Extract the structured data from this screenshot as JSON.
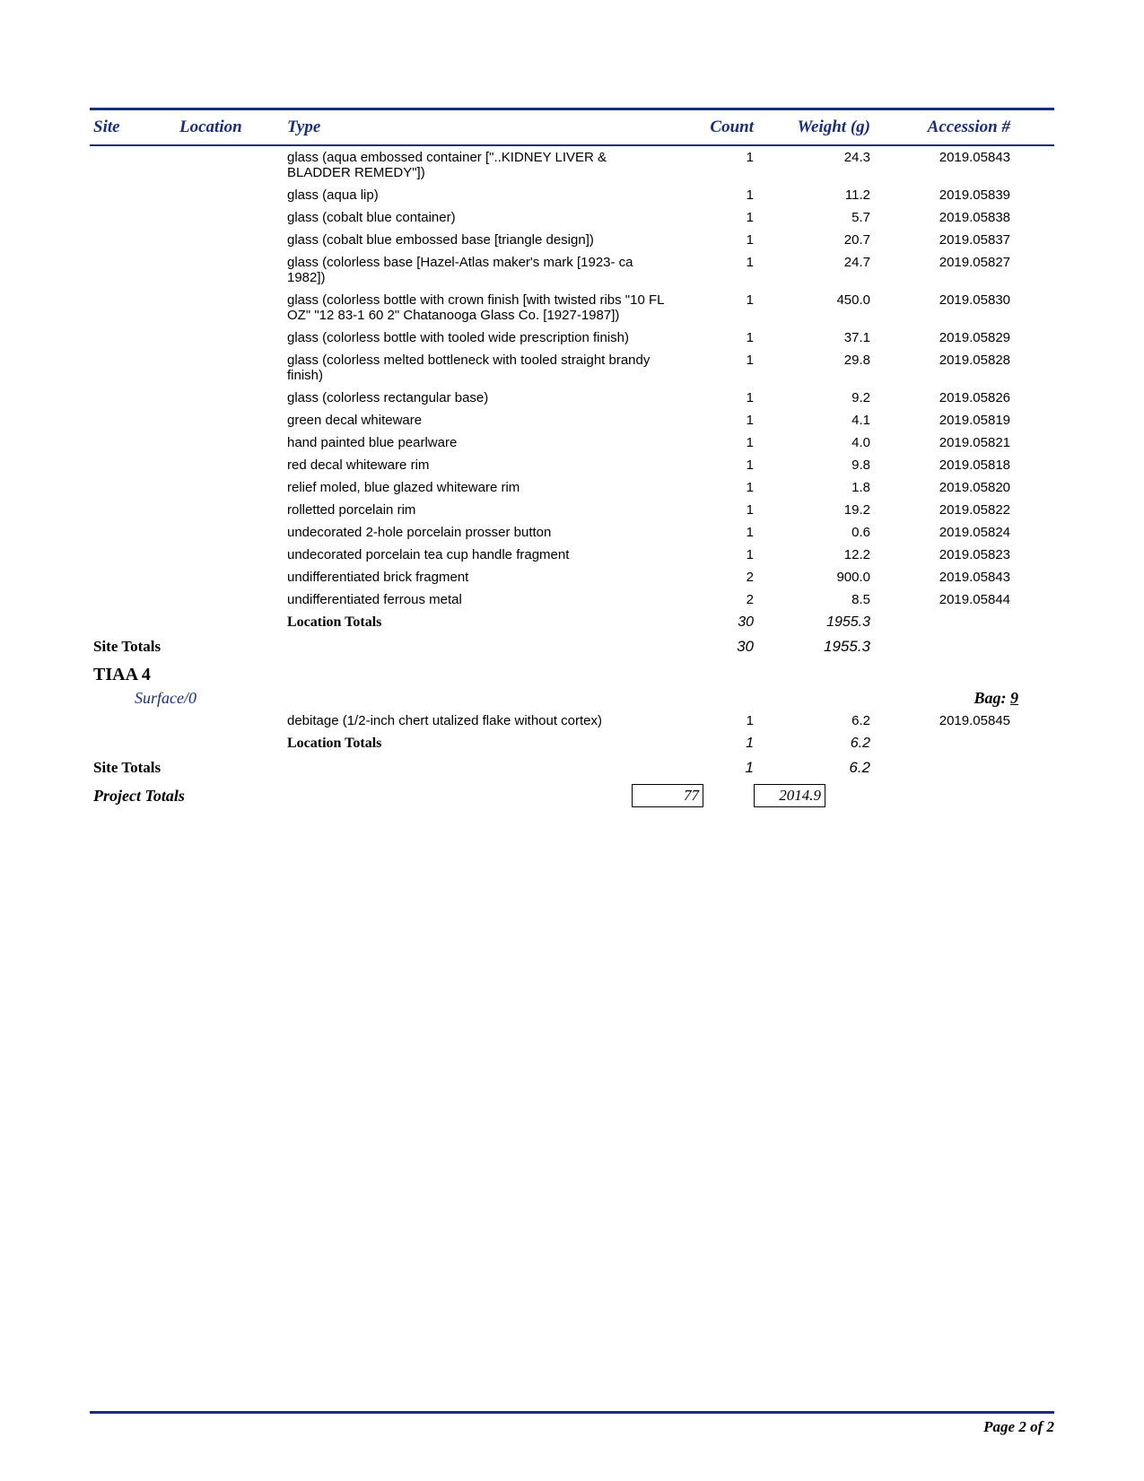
{
  "headers": {
    "site": "Site",
    "location": "Location",
    "type": "Type",
    "count": "Count",
    "weight": "Weight (g)",
    "accession": "Accession #"
  },
  "rows1": [
    {
      "type": "glass (aqua embossed container [\"..KIDNEY LIVER & BLADDER REMEDY\"])",
      "count": "1",
      "weight": "24.3",
      "accession": "2019.05843"
    },
    {
      "type": "glass (aqua lip)",
      "count": "1",
      "weight": "11.2",
      "accession": "2019.05839"
    },
    {
      "type": "glass (cobalt blue container)",
      "count": "1",
      "weight": "5.7",
      "accession": "2019.05838"
    },
    {
      "type": "glass (cobalt blue embossed base [triangle design])",
      "count": "1",
      "weight": "20.7",
      "accession": "2019.05837"
    },
    {
      "type": "glass (colorless base [Hazel-Atlas maker's mark [1923- ca 1982])",
      "count": "1",
      "weight": "24.7",
      "accession": "2019.05827"
    },
    {
      "type": "glass (colorless bottle  with crown finish [with twisted ribs \"10 FL OZ\" \"12 83-1 60 2\" Chatanooga Glass Co. [1927-1987])",
      "count": "1",
      "weight": "450.0",
      "accession": "2019.05830"
    },
    {
      "type": "glass (colorless bottle  with tooled wide prescription finish)",
      "count": "1",
      "weight": "37.1",
      "accession": "2019.05829"
    },
    {
      "type": "glass (colorless melted bottleneck with tooled straight brandy finish)",
      "count": "1",
      "weight": "29.8",
      "accession": "2019.05828"
    },
    {
      "type": "glass (colorless rectangular base)",
      "count": "1",
      "weight": "9.2",
      "accession": "2019.05826"
    },
    {
      "type": "green decal whiteware",
      "count": "1",
      "weight": "4.1",
      "accession": "2019.05819"
    },
    {
      "type": "hand painted blue pearlware",
      "count": "1",
      "weight": "4.0",
      "accession": "2019.05821"
    },
    {
      "type": "red decal whiteware rim",
      "count": "1",
      "weight": "9.8",
      "accession": "2019.05818"
    },
    {
      "type": "relief moled, blue glazed whiteware rim",
      "count": "1",
      "weight": "1.8",
      "accession": "2019.05820"
    },
    {
      "type": "rolletted porcelain rim",
      "count": "1",
      "weight": "19.2",
      "accession": "2019.05822"
    },
    {
      "type": "undecorated 2-hole porcelain prosser button",
      "count": "1",
      "weight": "0.6",
      "accession": "2019.05824"
    },
    {
      "type": "undecorated porcelain tea cup handle fragment",
      "count": "1",
      "weight": "12.2",
      "accession": "2019.05823"
    },
    {
      "type": "undifferentiated brick fragment",
      "count": "2",
      "weight": "900.0",
      "accession": "2019.05843"
    },
    {
      "type": "undifferentiated ferrous metal",
      "count": "2",
      "weight": "8.5",
      "accession": "2019.05844"
    }
  ],
  "loc_totals1": {
    "label": "Location Totals",
    "count": "30",
    "weight": "1955.3"
  },
  "site_totals1": {
    "label": "Site Totals",
    "count": "30",
    "weight": "1955.3"
  },
  "site2": {
    "name": "TIAA 4"
  },
  "surface2": {
    "label": "Surface/0",
    "bag_prefix": "Bag: ",
    "bag_num": "9"
  },
  "rows2": [
    {
      "type": "debitage (1/2-inch chert utalized flake without cortex)",
      "count": "1",
      "weight": "6.2",
      "accession": "2019.05845"
    }
  ],
  "loc_totals2": {
    "label": "Location Totals",
    "count": "1",
    "weight": "6.2"
  },
  "site_totals2": {
    "label": "Site Totals",
    "count": "1",
    "weight": "6.2"
  },
  "project_totals": {
    "label": "Project Totals",
    "count": "77",
    "weight": "2014.9"
  },
  "footer": {
    "page": "Page 2 of 2"
  }
}
